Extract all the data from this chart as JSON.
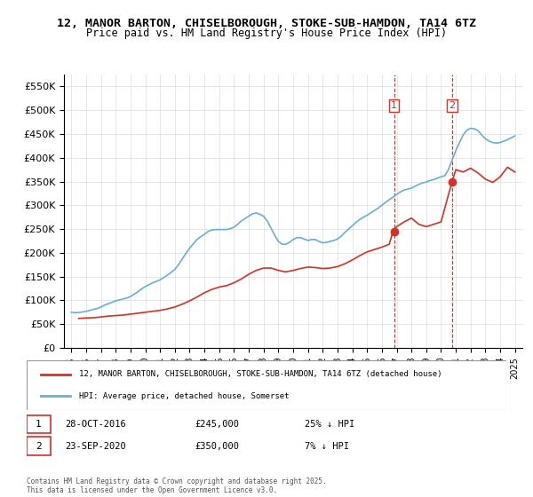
{
  "title1": "12, MANOR BARTON, CHISELBOROUGH, STOKE-SUB-HAMDON, TA14 6TZ",
  "title2": "Price paid vs. HM Land Registry's House Price Index (HPI)",
  "ylabel": "",
  "xlabel": "",
  "ylim": [
    0,
    575000
  ],
  "yticks": [
    0,
    50000,
    100000,
    150000,
    200000,
    250000,
    300000,
    350000,
    400000,
    450000,
    500000,
    550000
  ],
  "ytick_labels": [
    "£0",
    "£50K",
    "£100K",
    "£150K",
    "£200K",
    "£250K",
    "£300K",
    "£350K",
    "£400K",
    "£450K",
    "£500K",
    "£550K"
  ],
  "hpi_color": "#6baed6",
  "property_color": "#d73027",
  "transaction1_date": "28-OCT-2016",
  "transaction1_price": 245000,
  "transaction1_hpi_diff": "25% ↓ HPI",
  "transaction2_date": "23-SEP-2020",
  "transaction2_price": 350000,
  "transaction2_hpi_diff": "7% ↓ HPI",
  "legend_label1": "12, MANOR BARTON, CHISELBOROUGH, STOKE-SUB-HAMDON, TA14 6TZ (detached house)",
  "legend_label2": "HPI: Average price, detached house, Somerset",
  "footer": "Contains HM Land Registry data © Crown copyright and database right 2025.\nThis data is licensed under the Open Government Licence v3.0.",
  "hpi_x": [
    1995.0,
    1995.25,
    1995.5,
    1995.75,
    1996.0,
    1996.25,
    1996.5,
    1996.75,
    1997.0,
    1997.25,
    1997.5,
    1997.75,
    1998.0,
    1998.25,
    1998.5,
    1998.75,
    1999.0,
    1999.25,
    1999.5,
    1999.75,
    2000.0,
    2000.25,
    2000.5,
    2000.75,
    2001.0,
    2001.25,
    2001.5,
    2001.75,
    2002.0,
    2002.25,
    2002.5,
    2002.75,
    2003.0,
    2003.25,
    2003.5,
    2003.75,
    2004.0,
    2004.25,
    2004.5,
    2004.75,
    2005.0,
    2005.25,
    2005.5,
    2005.75,
    2006.0,
    2006.25,
    2006.5,
    2006.75,
    2007.0,
    2007.25,
    2007.5,
    2007.75,
    2008.0,
    2008.25,
    2008.5,
    2008.75,
    2009.0,
    2009.25,
    2009.5,
    2009.75,
    2010.0,
    2010.25,
    2010.5,
    2010.75,
    2011.0,
    2011.25,
    2011.5,
    2011.75,
    2012.0,
    2012.25,
    2012.5,
    2012.75,
    2013.0,
    2013.25,
    2013.5,
    2013.75,
    2014.0,
    2014.25,
    2014.5,
    2014.75,
    2015.0,
    2015.25,
    2015.5,
    2015.75,
    2016.0,
    2016.25,
    2016.5,
    2016.75,
    2017.0,
    2017.25,
    2017.5,
    2017.75,
    2018.0,
    2018.25,
    2018.5,
    2018.75,
    2019.0,
    2019.25,
    2019.5,
    2019.75,
    2020.0,
    2020.25,
    2020.5,
    2020.75,
    2021.0,
    2021.25,
    2021.5,
    2021.75,
    2022.0,
    2022.25,
    2022.5,
    2022.75,
    2023.0,
    2023.25,
    2023.5,
    2023.75,
    2024.0,
    2024.25,
    2024.5,
    2024.75,
    2025.0
  ],
  "hpi_y": [
    75000,
    74000,
    74500,
    75500,
    77000,
    79000,
    81000,
    83000,
    86000,
    90000,
    93000,
    96000,
    99000,
    101000,
    103000,
    105000,
    108000,
    113000,
    118000,
    124000,
    129000,
    133000,
    137000,
    140000,
    143000,
    148000,
    153000,
    159000,
    165000,
    175000,
    187000,
    199000,
    210000,
    219000,
    228000,
    234000,
    239000,
    245000,
    248000,
    249000,
    249000,
    249000,
    249000,
    251000,
    254000,
    260000,
    267000,
    272000,
    277000,
    282000,
    284000,
    281000,
    277000,
    267000,
    252000,
    237000,
    224000,
    218000,
    218000,
    222000,
    228000,
    232000,
    232000,
    229000,
    226000,
    228000,
    228000,
    224000,
    221000,
    222000,
    224000,
    226000,
    229000,
    235000,
    243000,
    250000,
    257000,
    264000,
    270000,
    275000,
    279000,
    284000,
    289000,
    294000,
    300000,
    306000,
    312000,
    317000,
    323000,
    328000,
    332000,
    334000,
    336000,
    340000,
    344000,
    347000,
    349000,
    352000,
    354000,
    357000,
    360000,
    362000,
    375000,
    395000,
    415000,
    432000,
    448000,
    458000,
    462000,
    461000,
    457000,
    448000,
    440000,
    435000,
    432000,
    431000,
    432000,
    435000,
    438000,
    442000,
    446000
  ],
  "prop_x": [
    1995.5,
    1996.0,
    1996.5,
    1997.0,
    1997.5,
    1998.0,
    1998.5,
    1999.0,
    1999.5,
    2000.0,
    2000.5,
    2001.0,
    2001.5,
    2002.0,
    2002.5,
    2003.0,
    2003.5,
    2004.0,
    2004.5,
    2005.0,
    2005.5,
    2006.0,
    2006.5,
    2007.0,
    2007.5,
    2008.0,
    2008.5,
    2009.0,
    2009.5,
    2010.0,
    2010.5,
    2011.0,
    2011.5,
    2012.0,
    2012.5,
    2013.0,
    2013.5,
    2014.0,
    2014.5,
    2015.0,
    2015.5,
    2016.0,
    2016.5,
    2016.75,
    2017.0,
    2017.5,
    2018.0,
    2018.5,
    2019.0,
    2019.5,
    2020.0,
    2020.75,
    2021.0,
    2021.5,
    2022.0,
    2022.5,
    2023.0,
    2023.5,
    2024.0,
    2024.5,
    2025.0
  ],
  "prop_y": [
    62000,
    63000,
    63500,
    65000,
    67000,
    68000,
    69000,
    71000,
    73000,
    75000,
    77000,
    79000,
    82000,
    86000,
    92000,
    99000,
    107000,
    116000,
    123000,
    128000,
    131000,
    137000,
    145000,
    155000,
    163000,
    168000,
    168000,
    163000,
    160000,
    163000,
    167000,
    170000,
    169000,
    167000,
    168000,
    171000,
    177000,
    185000,
    194000,
    202000,
    207000,
    212000,
    218000,
    245000,
    255000,
    265000,
    273000,
    260000,
    255000,
    260000,
    265000,
    350000,
    375000,
    370000,
    378000,
    368000,
    355000,
    348000,
    360000,
    380000,
    370000
  ]
}
